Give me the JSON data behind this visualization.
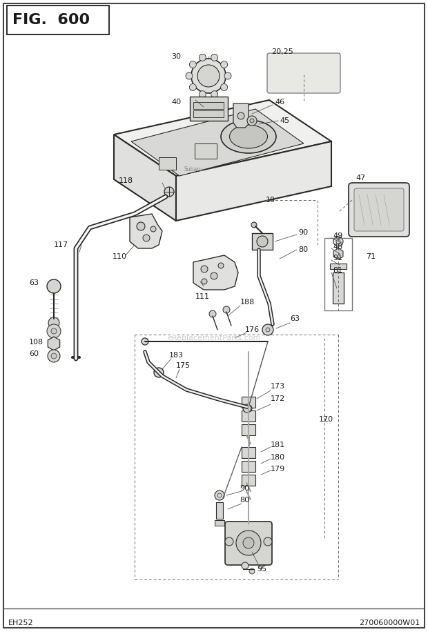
{
  "title": "FIG. 600",
  "bottom_left": "EH252",
  "bottom_right": "270060000W01",
  "bg_color": "#ffffff",
  "line_color": "#2a2a2a",
  "watermark": "eReplacementParts.com",
  "fig_w": 620,
  "fig_h": 919
}
